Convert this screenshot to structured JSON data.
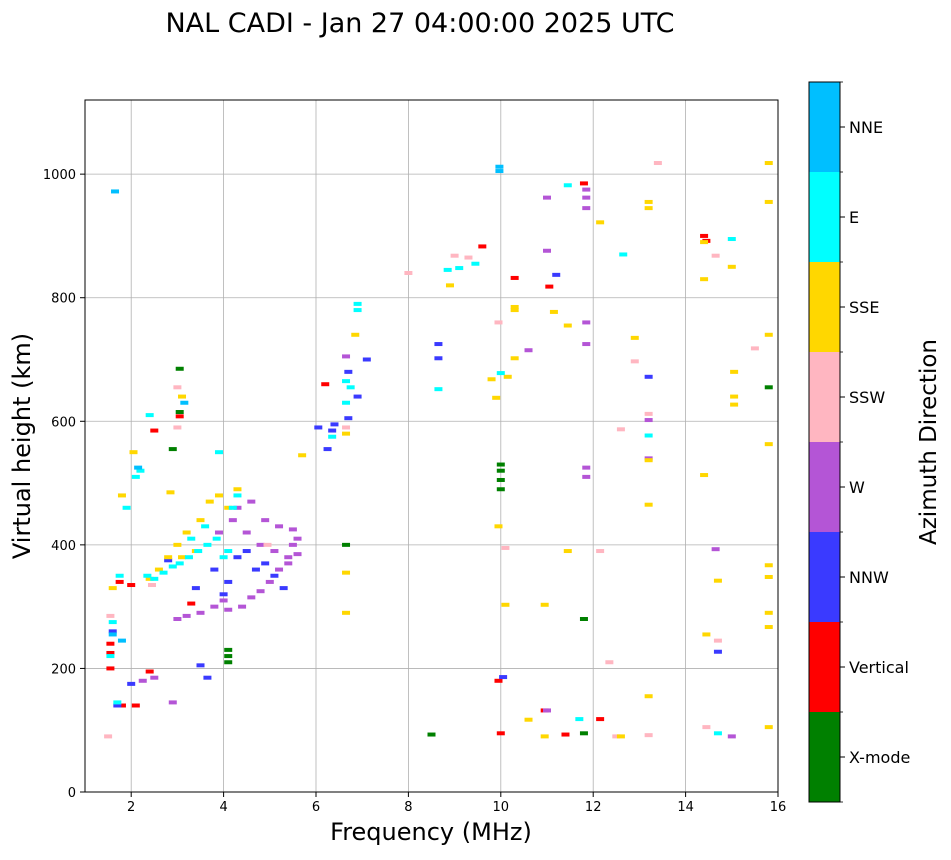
{
  "chart_data": {
    "type": "scatter",
    "title": "NAL CADI - Jan 27 04:00:00 2025 UTC",
    "xlabel": "Frequency (MHz)",
    "ylabel": "Virtual height (km)",
    "xlim": [
      1,
      16
    ],
    "ylim": [
      0,
      1120
    ],
    "xticks": [
      2,
      4,
      6,
      8,
      10,
      12,
      14,
      16
    ],
    "yticks": [
      0,
      200,
      400,
      600,
      800,
      1000
    ],
    "grid": true,
    "colorbar": {
      "label": "Azimuth Direction",
      "position": "right",
      "categories": [
        {
          "name": "X-mode",
          "color": "#008000"
        },
        {
          "name": "Vertical",
          "color": "#ff0000"
        },
        {
          "name": "NNW",
          "color": "#3a3aff"
        },
        {
          "name": "W",
          "color": "#b455d6"
        },
        {
          "name": "SSW",
          "color": "#ffb6c1"
        },
        {
          "name": "SSE",
          "color": "#ffd700"
        },
        {
          "name": "E",
          "color": "#00ffff"
        },
        {
          "name": "NNE",
          "color": "#00bfff"
        }
      ]
    },
    "series": [
      {
        "name": "X-mode",
        "points": [
          [
            2.9,
            555
          ],
          [
            3.05,
            615
          ],
          [
            3.05,
            685
          ],
          [
            4.1,
            230
          ],
          [
            4.1,
            220
          ],
          [
            4.1,
            210
          ],
          [
            6.65,
            400
          ],
          [
            8.5,
            93
          ],
          [
            10.0,
            530
          ],
          [
            10.0,
            520
          ],
          [
            10.0,
            505
          ],
          [
            10.0,
            490
          ],
          [
            11.8,
            280
          ],
          [
            11.8,
            95
          ],
          [
            15.8,
            655
          ]
        ]
      },
      {
        "name": "Vertical",
        "points": [
          [
            1.55,
            240
          ],
          [
            1.55,
            200
          ],
          [
            1.55,
            225
          ],
          [
            1.8,
            140
          ],
          [
            2.1,
            140
          ],
          [
            2.4,
            195
          ],
          [
            2.5,
            585
          ],
          [
            3.3,
            305
          ],
          [
            6.2,
            660
          ],
          [
            9.6,
            883
          ],
          [
            9.95,
            180
          ],
          [
            10.0,
            95
          ],
          [
            10.3,
            832
          ],
          [
            10.95,
            132
          ],
          [
            11.05,
            818
          ],
          [
            11.4,
            93
          ],
          [
            11.8,
            985
          ],
          [
            12.15,
            118
          ],
          [
            14.4,
            900
          ],
          [
            14.45,
            892
          ],
          [
            1.75,
            340
          ],
          [
            2.0,
            335
          ],
          [
            3.05,
            608
          ]
        ]
      },
      {
        "name": "NNW",
        "points": [
          [
            1.6,
            260
          ],
          [
            1.7,
            140
          ],
          [
            2.0,
            175
          ],
          [
            2.8,
            375
          ],
          [
            3.4,
            330
          ],
          [
            3.5,
            205
          ],
          [
            3.65,
            185
          ],
          [
            3.8,
            360
          ],
          [
            4.0,
            320
          ],
          [
            4.1,
            340
          ],
          [
            4.3,
            380
          ],
          [
            4.5,
            390
          ],
          [
            4.7,
            360
          ],
          [
            4.9,
            370
          ],
          [
            5.1,
            350
          ],
          [
            5.3,
            330
          ],
          [
            6.05,
            590
          ],
          [
            6.35,
            585
          ],
          [
            6.4,
            595
          ],
          [
            6.7,
            605
          ],
          [
            6.9,
            640
          ],
          [
            7.1,
            700
          ],
          [
            8.65,
            725
          ],
          [
            8.65,
            702
          ],
          [
            10.05,
            186
          ],
          [
            11.2,
            837
          ],
          [
            13.2,
            672
          ],
          [
            14.7,
            227
          ],
          [
            6.7,
            680
          ],
          [
            6.25,
            555
          ]
        ]
      },
      {
        "name": "W",
        "points": [
          [
            2.25,
            180
          ],
          [
            2.5,
            185
          ],
          [
            2.9,
            145
          ],
          [
            3.0,
            280
          ],
          [
            3.2,
            285
          ],
          [
            3.5,
            290
          ],
          [
            3.8,
            300
          ],
          [
            4.0,
            310
          ],
          [
            4.1,
            295
          ],
          [
            4.4,
            300
          ],
          [
            4.6,
            315
          ],
          [
            4.8,
            325
          ],
          [
            5.0,
            340
          ],
          [
            5.2,
            360
          ],
          [
            5.4,
            380
          ],
          [
            5.5,
            400
          ],
          [
            5.6,
            410
          ],
          [
            4.3,
            460
          ],
          [
            4.6,
            470
          ],
          [
            4.9,
            440
          ],
          [
            5.2,
            430
          ],
          [
            5.5,
            425
          ],
          [
            3.9,
            420
          ],
          [
            4.2,
            440
          ],
          [
            4.5,
            420
          ],
          [
            4.8,
            400
          ],
          [
            5.1,
            390
          ],
          [
            5.4,
            370
          ],
          [
            5.6,
            385
          ],
          [
            6.65,
            705
          ],
          [
            11.0,
            962
          ],
          [
            11.0,
            876
          ],
          [
            11.85,
            975
          ],
          [
            11.85,
            962
          ],
          [
            11.85,
            945
          ],
          [
            11.85,
            760
          ],
          [
            11.85,
            725
          ],
          [
            11.85,
            525
          ],
          [
            11.85,
            510
          ],
          [
            13.2,
            540
          ],
          [
            13.2,
            602
          ],
          [
            14.65,
            393
          ],
          [
            15.0,
            90
          ],
          [
            11.0,
            132
          ],
          [
            10.6,
            715
          ]
        ]
      },
      {
        "name": "SSW",
        "points": [
          [
            1.5,
            90
          ],
          [
            1.55,
            285
          ],
          [
            2.45,
            335
          ],
          [
            3.0,
            655
          ],
          [
            3.0,
            590
          ],
          [
            4.95,
            400
          ],
          [
            6.65,
            590
          ],
          [
            8.0,
            840
          ],
          [
            9.0,
            868
          ],
          [
            9.3,
            865
          ],
          [
            9.95,
            760
          ],
          [
            10.1,
            395
          ],
          [
            12.15,
            390
          ],
          [
            12.35,
            210
          ],
          [
            12.6,
            587
          ],
          [
            12.9,
            697
          ],
          [
            13.2,
            612
          ],
          [
            13.4,
            1018
          ],
          [
            14.45,
            105
          ],
          [
            14.65,
            868
          ],
          [
            14.7,
            245
          ],
          [
            15.5,
            718
          ],
          [
            12.5,
            90
          ],
          [
            13.2,
            92
          ]
        ]
      },
      {
        "name": "SSE",
        "points": [
          [
            1.6,
            330
          ],
          [
            1.8,
            480
          ],
          [
            2.05,
            550
          ],
          [
            2.4,
            345
          ],
          [
            2.6,
            360
          ],
          [
            2.8,
            380
          ],
          [
            3.0,
            400
          ],
          [
            3.2,
            420
          ],
          [
            3.5,
            440
          ],
          [
            3.7,
            470
          ],
          [
            3.9,
            480
          ],
          [
            4.1,
            460
          ],
          [
            3.4,
            390
          ],
          [
            3.1,
            380
          ],
          [
            2.85,
            485
          ],
          [
            3.1,
            640
          ],
          [
            4.3,
            490
          ],
          [
            5.7,
            545
          ],
          [
            6.65,
            355
          ],
          [
            6.65,
            290
          ],
          [
            6.65,
            580
          ],
          [
            6.85,
            740
          ],
          [
            8.9,
            820
          ],
          [
            9.8,
            668
          ],
          [
            9.9,
            638
          ],
          [
            9.95,
            430
          ],
          [
            10.1,
            303
          ],
          [
            10.15,
            672
          ],
          [
            10.3,
            702
          ],
          [
            10.3,
            785
          ],
          [
            10.3,
            780
          ],
          [
            10.6,
            117
          ],
          [
            10.95,
            303
          ],
          [
            10.95,
            90
          ],
          [
            11.15,
            777
          ],
          [
            11.45,
            755
          ],
          [
            11.45,
            390
          ],
          [
            12.15,
            922
          ],
          [
            12.6,
            90
          ],
          [
            12.9,
            735
          ],
          [
            13.2,
            955
          ],
          [
            13.2,
            945
          ],
          [
            13.2,
            465
          ],
          [
            13.2,
            537
          ],
          [
            13.2,
            155
          ],
          [
            14.4,
            890
          ],
          [
            14.4,
            830
          ],
          [
            14.4,
            513
          ],
          [
            14.45,
            255
          ],
          [
            14.7,
            342
          ],
          [
            15.0,
            850
          ],
          [
            15.05,
            680
          ],
          [
            15.05,
            640
          ],
          [
            15.05,
            627
          ],
          [
            15.8,
            1018
          ],
          [
            15.8,
            955
          ],
          [
            15.8,
            740
          ],
          [
            15.8,
            563
          ],
          [
            15.8,
            367
          ],
          [
            15.8,
            348
          ],
          [
            15.8,
            290
          ],
          [
            15.8,
            267
          ],
          [
            15.8,
            105
          ]
        ]
      },
      {
        "name": "E",
        "points": [
          [
            1.55,
            220
          ],
          [
            1.6,
            275
          ],
          [
            1.7,
            145
          ],
          [
            1.75,
            350
          ],
          [
            1.9,
            460
          ],
          [
            2.1,
            510
          ],
          [
            2.2,
            520
          ],
          [
            2.35,
            350
          ],
          [
            2.5,
            345
          ],
          [
            2.7,
            355
          ],
          [
            2.9,
            365
          ],
          [
            3.05,
            370
          ],
          [
            3.25,
            380
          ],
          [
            3.45,
            390
          ],
          [
            3.65,
            400
          ],
          [
            3.85,
            410
          ],
          [
            3.9,
            550
          ],
          [
            4.1,
            390
          ],
          [
            4.2,
            460
          ],
          [
            4.3,
            480
          ],
          [
            4.0,
            380
          ],
          [
            3.6,
            430
          ],
          [
            3.3,
            410
          ],
          [
            2.4,
            610
          ],
          [
            6.35,
            575
          ],
          [
            6.65,
            665
          ],
          [
            6.75,
            655
          ],
          [
            6.9,
            790
          ],
          [
            6.9,
            780
          ],
          [
            8.65,
            652
          ],
          [
            8.85,
            845
          ],
          [
            9.1,
            848
          ],
          [
            9.45,
            855
          ],
          [
            10.0,
            678
          ],
          [
            11.45,
            982
          ],
          [
            11.7,
            118
          ],
          [
            12.65,
            870
          ],
          [
            13.2,
            577
          ],
          [
            14.7,
            95
          ],
          [
            15.0,
            895
          ],
          [
            6.65,
            630
          ]
        ]
      },
      {
        "name": "NNE",
        "points": [
          [
            1.6,
            255
          ],
          [
            1.8,
            245
          ],
          [
            2.15,
            525
          ],
          [
            1.65,
            972
          ],
          [
            3.15,
            630
          ],
          [
            9.97,
            1012
          ],
          [
            9.97,
            1005
          ]
        ]
      }
    ]
  }
}
